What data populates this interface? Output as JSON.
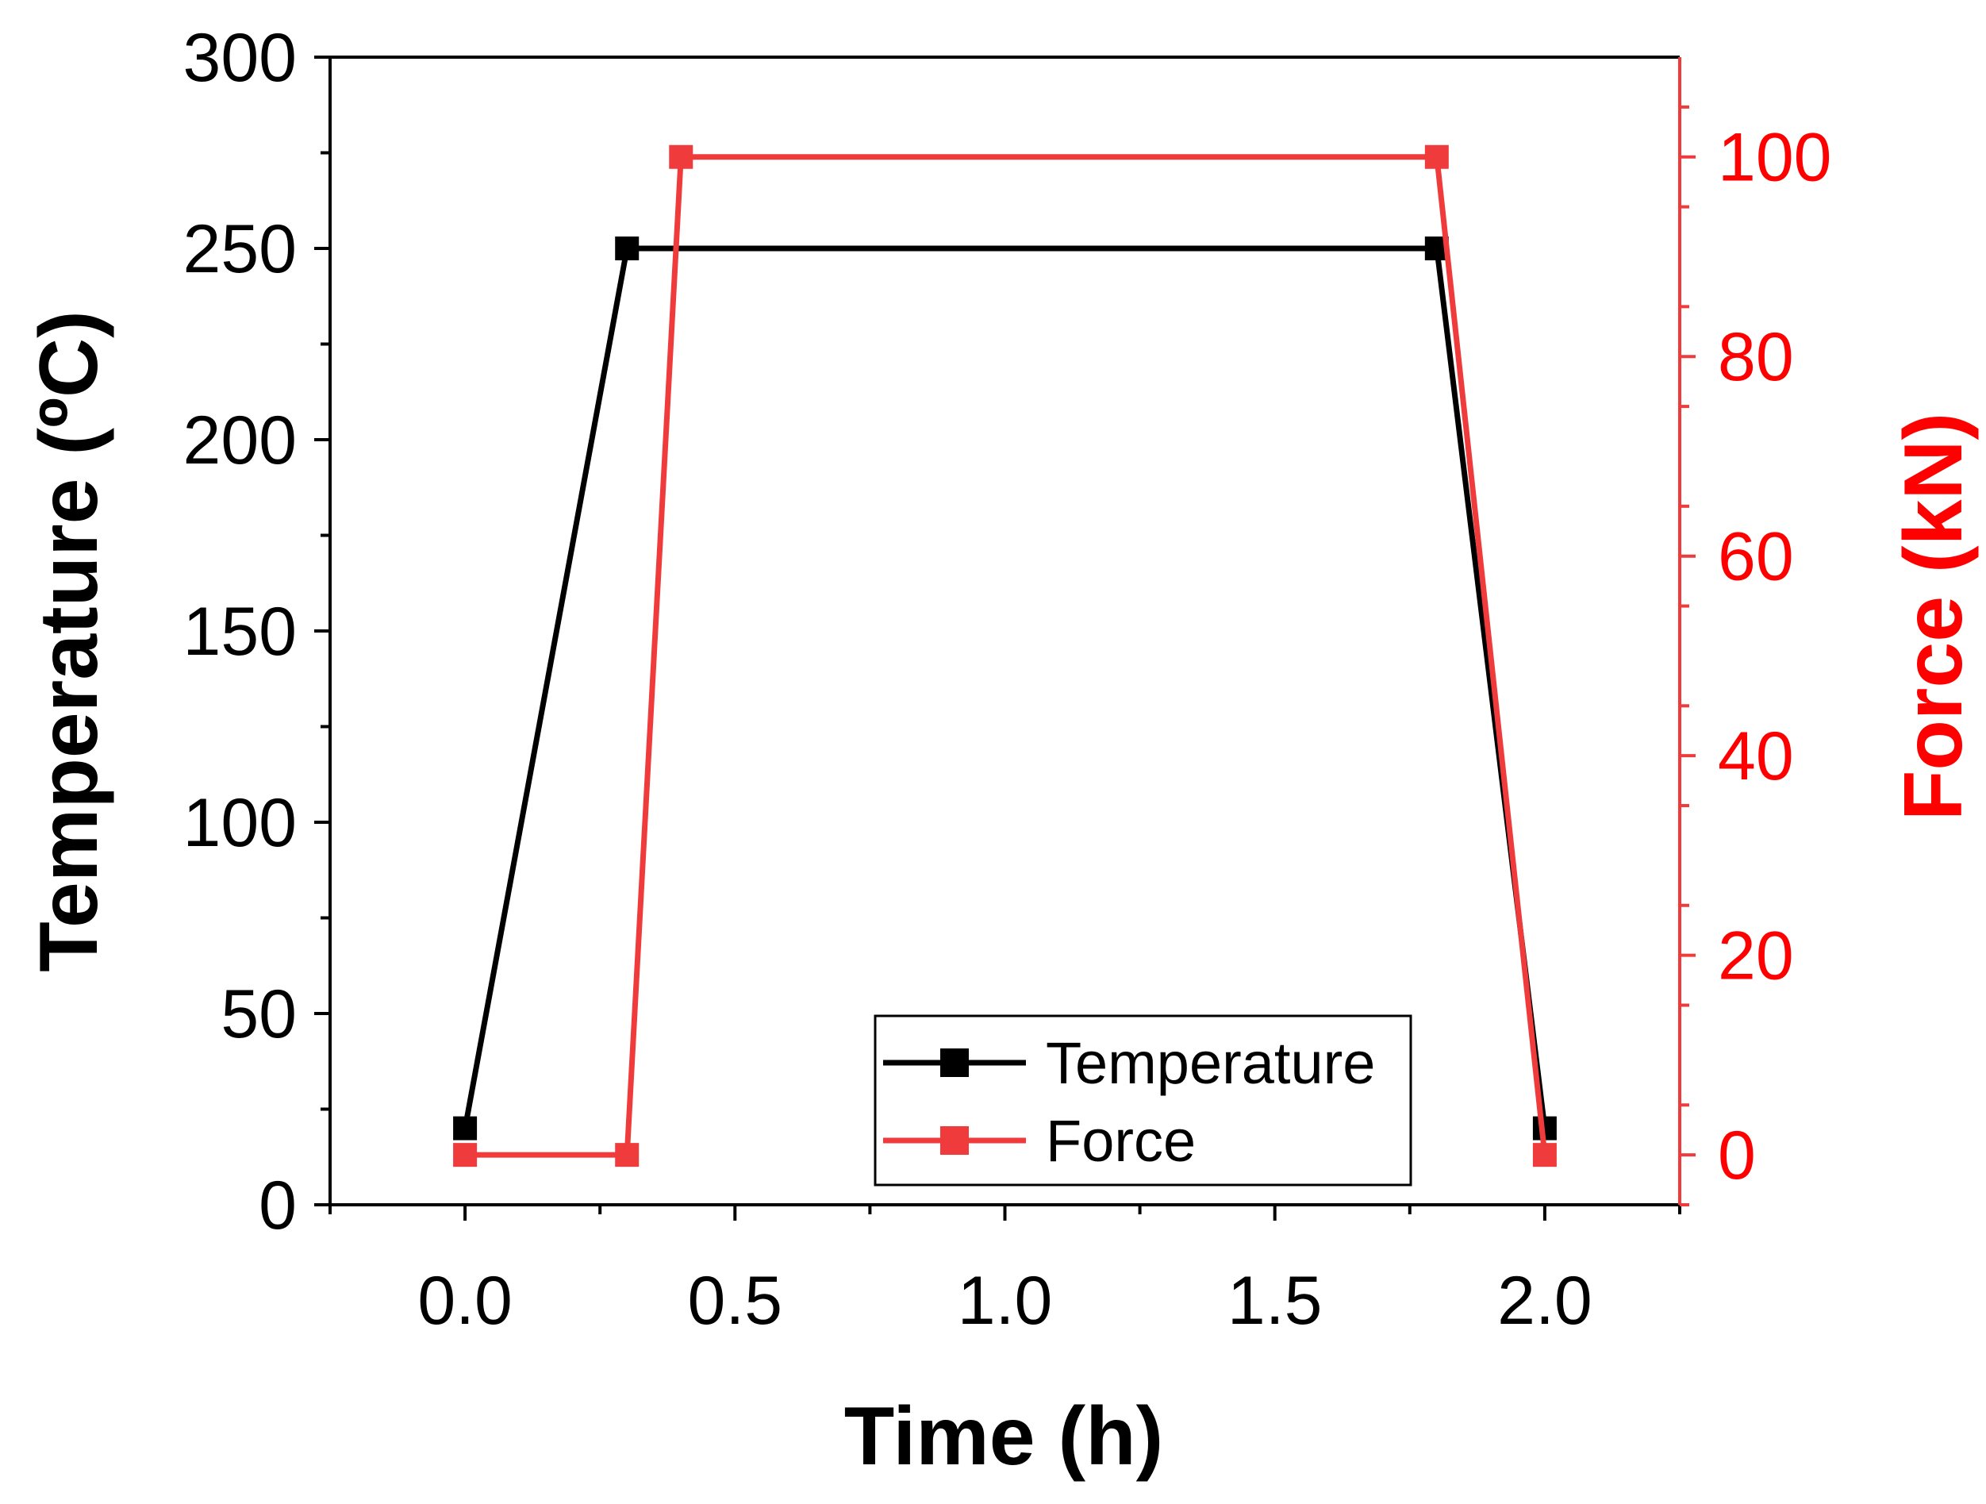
{
  "chart_data": {
    "type": "line",
    "title": "",
    "xlabel": "Time (h)",
    "ylabel": "Temperature (ºC)",
    "y2label": "Force (kN)",
    "xlim": [
      -0.25,
      2.25
    ],
    "ylim": [
      0,
      300
    ],
    "y2lim": [
      -5,
      110
    ],
    "xticks": [
      0.0,
      0.5,
      1.0,
      1.5,
      2.0
    ],
    "xtick_labels": [
      "0.0",
      "0.5",
      "1.0",
      "1.5",
      "2.0"
    ],
    "yticks": [
      0,
      50,
      100,
      150,
      200,
      250,
      300
    ],
    "ytick_labels": [
      "0",
      "50",
      "100",
      "150",
      "200",
      "250",
      "300"
    ],
    "y2ticks": [
      0,
      20,
      40,
      60,
      80,
      100
    ],
    "y2tick_labels": [
      "0",
      "20",
      "40",
      "60",
      "80",
      "100"
    ],
    "legend_position": "bottom-center",
    "grid": false,
    "series": [
      {
        "name": "Temperature",
        "axis": "left",
        "color": "#000000",
        "x": [
          0.0,
          0.3,
          1.8,
          2.0
        ],
        "values": [
          20,
          250,
          250,
          20
        ]
      },
      {
        "name": "Force",
        "axis": "right",
        "color": "#ef3b3b",
        "x": [
          0.0,
          0.3,
          0.4,
          1.8,
          2.0
        ],
        "values": [
          0,
          0,
          100,
          100,
          0
        ]
      }
    ],
    "colors": {
      "left_axis": "#000000",
      "right_axis": "#ff0000",
      "right_axis_line": "#ef3b3b"
    }
  }
}
